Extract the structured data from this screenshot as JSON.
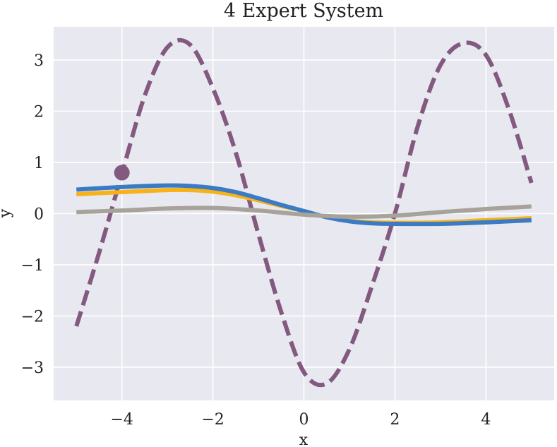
{
  "chart_data": {
    "type": "line",
    "title": "4 Expert System",
    "xlabel": "x",
    "ylabel": "y",
    "xlim": [
      -5.5,
      5.5
    ],
    "ylim": [
      -3.65,
      3.65
    ],
    "xticks": [
      -4,
      -2,
      0,
      2,
      4
    ],
    "yticks": [
      -3,
      -2,
      -1,
      0,
      1,
      2,
      3
    ],
    "xtick_labels": [
      "−4",
      "−2",
      "0",
      "2",
      "4"
    ],
    "ytick_labels": [
      "−3",
      "−2",
      "−1",
      "0",
      "1",
      "2",
      "3"
    ],
    "grid": true,
    "background": "#e8e8f0",
    "grid_color": "#ffffff",
    "series": [
      {
        "color": "#83597f",
        "style": "dashed",
        "x": [
          -5.0,
          -4.5,
          -4.0,
          -3.5,
          -3.0,
          -2.5,
          -2.0,
          -1.5,
          -1.0,
          -0.5,
          0.0,
          0.5,
          1.0,
          1.5,
          2.0,
          2.5,
          3.0,
          3.5,
          4.0,
          4.5,
          5.0
        ],
        "values": [
          -2.2,
          -0.76,
          0.78,
          2.3,
          3.25,
          3.3,
          2.45,
          1.2,
          -0.4,
          -1.92,
          -3.1,
          -3.32,
          -2.65,
          -1.4,
          0.0,
          1.7,
          2.9,
          3.33,
          3.1,
          2.05,
          0.6
        ]
      },
      {
        "color": "#f6b21a",
        "style": "solid",
        "x": [
          -5.0,
          -4.0,
          -3.0,
          -2.5,
          -2.0,
          -1.5,
          -1.0,
          -0.5,
          0.0,
          0.5,
          1.0,
          1.5,
          2.0,
          3.0,
          4.0,
          5.0
        ],
        "values": [
          0.38,
          0.42,
          0.46,
          0.46,
          0.43,
          0.36,
          0.26,
          0.15,
          0.05,
          -0.07,
          -0.14,
          -0.17,
          -0.18,
          -0.17,
          -0.13,
          -0.09
        ]
      },
      {
        "color": "#3a7bc4",
        "style": "solid",
        "x": [
          -5.0,
          -4.0,
          -3.0,
          -2.5,
          -2.0,
          -1.5,
          -1.0,
          -0.5,
          0.0,
          0.5,
          1.0,
          1.5,
          2.0,
          3.0,
          4.0,
          5.0
        ],
        "values": [
          0.47,
          0.52,
          0.55,
          0.54,
          0.5,
          0.42,
          0.3,
          0.17,
          0.05,
          -0.07,
          -0.15,
          -0.19,
          -0.2,
          -0.2,
          -0.17,
          -0.13
        ]
      },
      {
        "color": "#a8a39a",
        "style": "solid",
        "x": [
          -5.0,
          -4.0,
          -3.0,
          -2.0,
          -1.0,
          0.0,
          1.0,
          2.0,
          3.0,
          4.0,
          5.0
        ],
        "values": [
          0.03,
          0.06,
          0.1,
          0.11,
          0.06,
          -0.02,
          -0.06,
          -0.04,
          0.03,
          0.09,
          0.14
        ]
      }
    ],
    "marker": {
      "x": -4.0,
      "y": 0.8,
      "color": "#83597f"
    }
  }
}
